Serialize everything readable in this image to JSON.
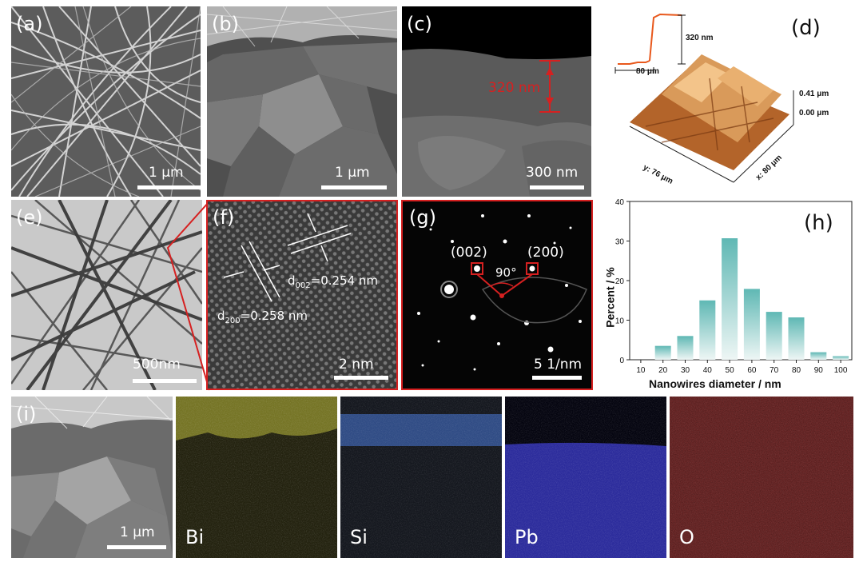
{
  "panels": {
    "a": {
      "label": "(a)",
      "scale": "1 μm"
    },
    "b": {
      "label": "(b)",
      "scale": "1 μm"
    },
    "c": {
      "label": "(c)",
      "scale": "300 nm",
      "thickness": "320 nm"
    },
    "d": {
      "label": "(d)",
      "profile_width": "80 μm",
      "profile_height": "320 nm",
      "z_top": "0.41 μm",
      "z_bottom": "0.00 μm",
      "y_axis": "y: 76 μm",
      "x_axis": "x: 80 μm"
    },
    "e": {
      "label": "(e)",
      "scale": "500nm"
    },
    "f": {
      "label": "(f)",
      "d002_prefix": "d",
      "d002_sub": "002",
      "d002_value": "=0.254 nm",
      "d200_prefix": "d",
      "d200_sub": "200",
      "d200_value": "=0.258 nm",
      "scale": "2 nm"
    },
    "g": {
      "label": "(g)",
      "spot1": "(002)",
      "spot2": "(200)",
      "angle": "90°",
      "scale": "5 1/nm"
    },
    "h": {
      "label": "(h)"
    },
    "i": {
      "label": "(i)",
      "scale": "1 μm"
    }
  },
  "eds_maps": [
    {
      "element": "Bi",
      "color": "#e6e24a"
    },
    {
      "element": "Si",
      "color": "#4a78d8"
    },
    {
      "element": "Pb",
      "color": "#3a3ac8"
    },
    {
      "element": "O",
      "color": "#d04848"
    }
  ],
  "chart_data": {
    "type": "bar",
    "categories": [
      "10",
      "20",
      "30",
      "40",
      "50",
      "60",
      "70",
      "80",
      "90",
      "100"
    ],
    "values": [
      0,
      3.5,
      6,
      15,
      30.7,
      17.9,
      12.1,
      10.7,
      1.9,
      0.9
    ],
    "xlabel": "Nanowires diameter / nm",
    "ylabel": "Percent / %",
    "ylim": [
      0,
      40
    ],
    "yticks": [
      "0",
      "10",
      "20",
      "30",
      "40"
    ],
    "bar_color": "#5fb8b4",
    "grid": false
  }
}
